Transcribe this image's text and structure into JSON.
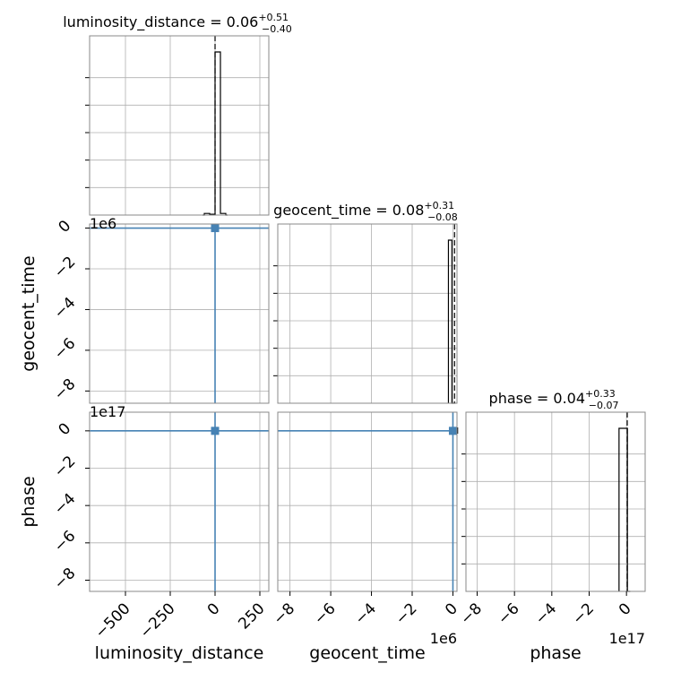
{
  "chart_data": {
    "type": "corner",
    "parameters": [
      {
        "name": "luminosity_distance",
        "axis_label": "luminosity_distance",
        "title": "luminosity_distance = 0.06",
        "title_upper": "+0.51",
        "title_lower": "−0.40",
        "median": 0.06,
        "err_plus": 0.51,
        "err_minus": 0.4,
        "range": [
          -700,
          300
        ],
        "ticks": [
          -500,
          -250,
          0,
          250
        ],
        "tick_labels": [
          "−500",
          "−250",
          "0",
          "250"
        ],
        "offset": "",
        "truth": 0,
        "histogram": {
          "edges": [
            -70,
            -60,
            -30,
            0,
            30,
            60,
            70
          ],
          "heights": [
            0,
            0.01,
            0.005,
            1.0,
            0.01,
            0
          ]
        }
      },
      {
        "name": "geocent_time",
        "axis_label": "geocent_time",
        "title": "geocent_time = 0.08",
        "title_upper": "+0.31",
        "title_lower": "−0.08",
        "median": 0.08,
        "err_plus": 0.31,
        "err_minus": 0.08,
        "range": [
          -8.6,
          0.2
        ],
        "ticks": [
          -8,
          -6,
          -4,
          -2,
          0
        ],
        "tick_labels": [
          "−8",
          "−6",
          "−4",
          "−2",
          "0"
        ],
        "offset": "1e6",
        "truth": 0,
        "histogram": {
          "edges": [
            -0.22,
            -0.05,
            0.12
          ],
          "heights": [
            1.0,
            0.0
          ]
        }
      },
      {
        "name": "phase",
        "axis_label": "phase",
        "title": "phase = 0.04",
        "title_upper": "+0.33",
        "title_lower": "−0.07",
        "median": 0.04,
        "err_plus": 0.33,
        "err_minus": 0.07,
        "range": [
          -8.6,
          1.0
        ],
        "ticks": [
          -8,
          -6,
          -4,
          -2,
          0
        ],
        "tick_labels": [
          "−8",
          "−6",
          "−4",
          "−2",
          "0"
        ],
        "offset": "1e17",
        "truth": 0,
        "histogram": {
          "edges": [
            -0.4,
            0.05,
            0.2
          ],
          "heights": [
            1.0,
            0.0
          ]
        }
      }
    ],
    "grid": true,
    "truth_color": "#4682b4",
    "hist_color": "#000000",
    "grid_color": "#b0b0b0"
  }
}
